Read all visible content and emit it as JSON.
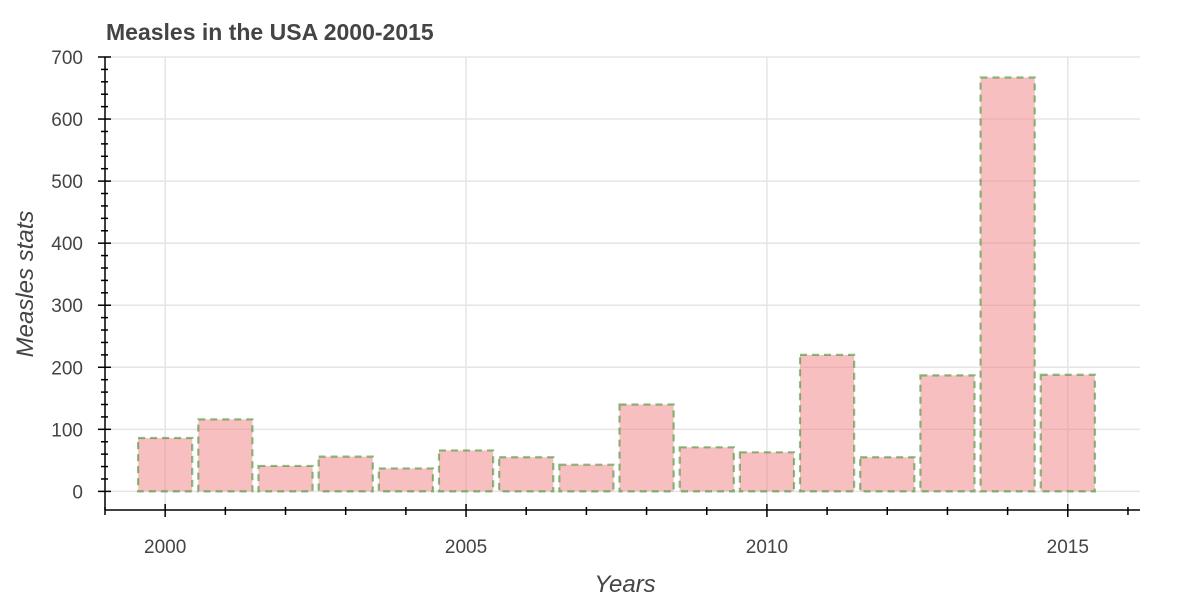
{
  "chart_data": {
    "type": "bar",
    "title": "Measles in the USA 2000-2015",
    "xlabel": "Years",
    "ylabel": "Measles stats",
    "x": [
      2000,
      2001,
      2002,
      2003,
      2004,
      2005,
      2006,
      2007,
      2008,
      2009,
      2010,
      2011,
      2012,
      2013,
      2014,
      2015
    ],
    "values": [
      86,
      116,
      41,
      56,
      37,
      66,
      55,
      43,
      140,
      71,
      63,
      220,
      55,
      187,
      667,
      188
    ],
    "xlim": [
      1999.0,
      2016.2
    ],
    "ylim": [
      -30,
      700
    ],
    "xticks": [
      2000,
      2005,
      2010,
      2015
    ],
    "yticks": [
      0,
      100,
      200,
      300,
      400,
      500,
      600,
      700
    ],
    "grid": true,
    "legend": "none",
    "colors": {
      "fill": "#f08080",
      "outline": "#2e8b22",
      "grid": "#e5e5e5",
      "text": "#444444"
    }
  }
}
